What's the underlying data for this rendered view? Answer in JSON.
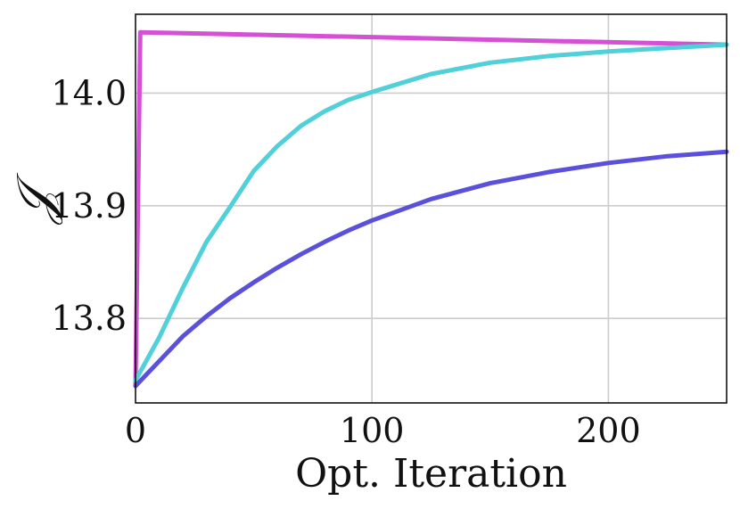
{
  "chart_data": {
    "type": "line",
    "title": "",
    "xlabel": "Opt. Iteration",
    "ylabel": "𝒥",
    "xlim": [
      0,
      250
    ],
    "ylim": [
      13.725,
      14.07
    ],
    "grid": true,
    "xticks": [
      0,
      100,
      200
    ],
    "xtick_labels": [
      "0",
      "100",
      "200"
    ],
    "yticks": [
      13.8,
      13.9,
      14.0
    ],
    "ytick_labels": [
      "13.8",
      "13.9",
      "14.0"
    ],
    "series": [
      {
        "color": "#d450d4",
        "x": [
          0,
          2,
          250
        ],
        "y": [
          13.74,
          14.054,
          14.043
        ]
      },
      {
        "color": "#50d0d8",
        "x": [
          0,
          10,
          20,
          30,
          40,
          50,
          60,
          70,
          80,
          90,
          100,
          125,
          150,
          175,
          200,
          225,
          250
        ],
        "y": [
          13.745,
          13.783,
          13.827,
          13.868,
          13.899,
          13.931,
          13.953,
          13.971,
          13.984,
          13.994,
          14.001,
          14.017,
          14.027,
          14.033,
          14.037,
          14.04,
          14.043
        ]
      },
      {
        "color": "#5a50dc",
        "x": [
          0,
          10,
          20,
          30,
          40,
          50,
          60,
          70,
          80,
          90,
          100,
          125,
          150,
          175,
          200,
          225,
          250
        ],
        "y": [
          13.74,
          13.762,
          13.784,
          13.802,
          13.818,
          13.832,
          13.845,
          13.857,
          13.868,
          13.878,
          13.887,
          13.906,
          13.92,
          13.93,
          13.938,
          13.944,
          13.948
        ]
      }
    ]
  }
}
